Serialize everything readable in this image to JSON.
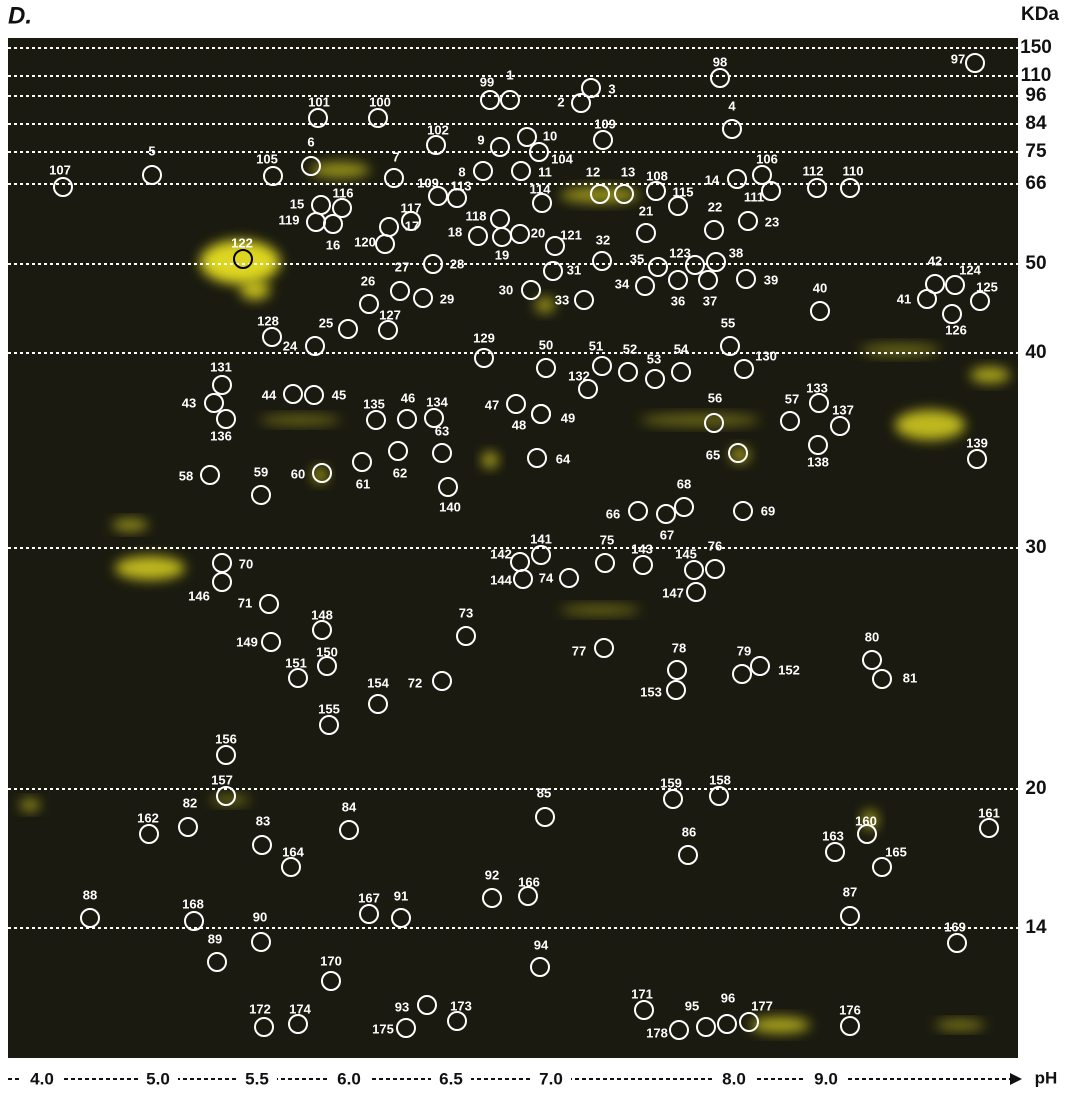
{
  "panel_label": "D.",
  "y_axis_label": "KDa",
  "x_axis_label": "pH",
  "mw_markers": [
    "150",
    "110",
    "96",
    "84",
    "75",
    "66",
    "50",
    "40",
    "30",
    "20",
    "14"
  ],
  "ph_labels": [
    "4.0",
    "5.0",
    "5.5",
    "6.0",
    "6.5",
    "7.0",
    "8.0",
    "9.0"
  ],
  "spots": [
    "97",
    "98",
    "1",
    "99",
    "3",
    "2",
    "101",
    "100",
    "4",
    "109",
    "102",
    "9",
    "10",
    "104",
    "6",
    "5",
    "105",
    "7",
    "8",
    "11",
    "106",
    "107",
    "12",
    "13",
    "108",
    "14",
    "112",
    "110",
    "111",
    "113",
    "109",
    "114",
    "115",
    "116",
    "15",
    "119",
    "117",
    "17",
    "16",
    "22",
    "23",
    "21",
    "118",
    "18",
    "19",
    "20",
    "121",
    "120",
    "122",
    "32",
    "28",
    "35",
    "123",
    "38",
    "31",
    "42",
    "124",
    "27",
    "39",
    "34",
    "36",
    "37",
    "30",
    "125",
    "29",
    "33",
    "41",
    "40",
    "26",
    "126",
    "25",
    "127",
    "128",
    "24",
    "55",
    "129",
    "50",
    "51",
    "52",
    "53",
    "54",
    "130",
    "131",
    "132",
    "44",
    "45",
    "43",
    "133",
    "47",
    "57",
    "46",
    "134",
    "135",
    "49",
    "48",
    "137",
    "56",
    "136",
    "63",
    "139",
    "138",
    "65",
    "62",
    "64",
    "61",
    "58",
    "60",
    "59",
    "140",
    "68",
    "66",
    "67",
    "69",
    "141",
    "142",
    "75",
    "143",
    "145",
    "76",
    "70",
    "144",
    "74",
    "146",
    "147",
    "71",
    "148",
    "73",
    "149",
    "77",
    "80",
    "150",
    "78",
    "79",
    "152",
    "81",
    "151",
    "72",
    "153",
    "154",
    "155",
    "156",
    "157",
    "85",
    "159",
    "158",
    "162",
    "82",
    "84",
    "161",
    "160",
    "83",
    "86",
    "163",
    "164",
    "165",
    "92",
    "166",
    "88",
    "168",
    "167",
    "91",
    "87",
    "90",
    "169",
    "89",
    "94",
    "170",
    "93",
    "173",
    "171",
    "95",
    "96",
    "177",
    "176",
    "172",
    "174",
    "175",
    "178"
  ]
}
